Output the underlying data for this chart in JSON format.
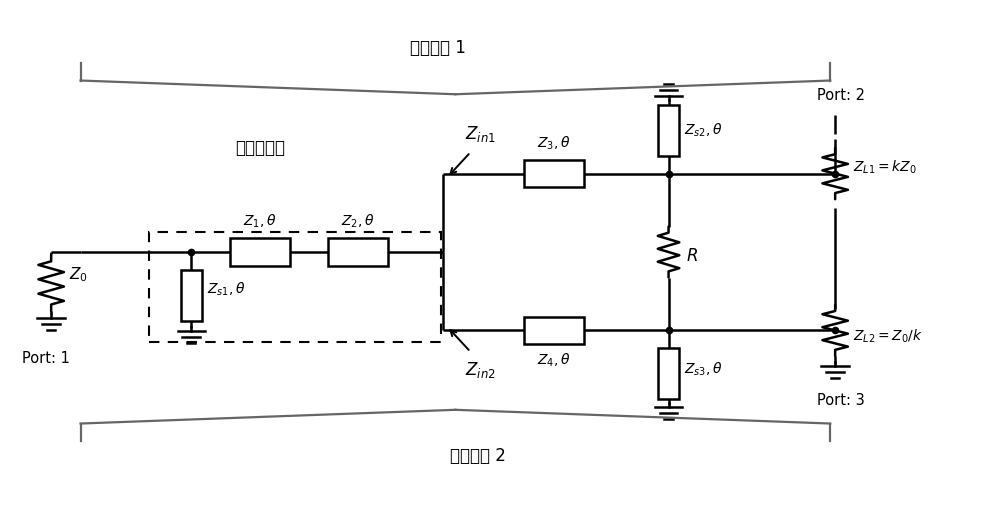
{
  "fig_width": 10.0,
  "fig_height": 5.07,
  "bg_color": "#ffffff",
  "line_color": "#000000",
  "line_width": 1.8,
  "title_filter1": "滤波支路 1",
  "title_filter2": "滤波支路 2",
  "label_tri": "三模谐振器",
  "port1": "Port: 1",
  "port2": "Port: 2",
  "port3": "Port: 3"
}
